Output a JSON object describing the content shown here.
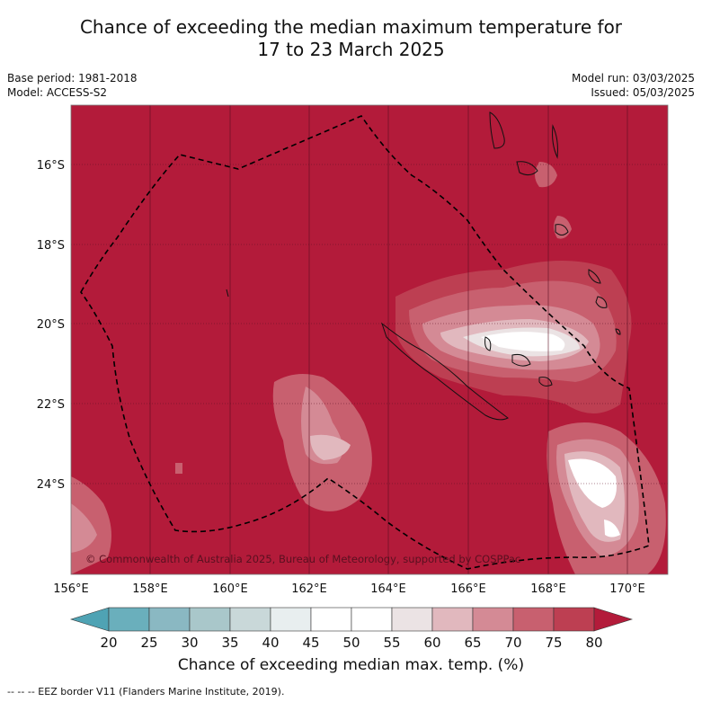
{
  "title": {
    "line1": "Chance of exceeding the median maximum temperature for",
    "line2": "17 to 23 March 2025"
  },
  "meta_left": {
    "base_period": "Base period: 1981-2018",
    "model": "Model: ACCESS-S2"
  },
  "meta_right": {
    "model_run": "Model run: 03/03/2025",
    "issued": "Issued: 05/03/2025"
  },
  "map": {
    "lat_labels": [
      "16°S",
      "18°S",
      "20°S",
      "22°S",
      "24°S"
    ],
    "lon_labels": [
      "156°E",
      "158°E",
      "160°E",
      "162°E",
      "164°E",
      "166°E",
      "168°E",
      "170°E"
    ],
    "copyright": "© Commonwealth of Australia 2025, Bureau of Meteorology, supported by COSPPac",
    "background_color": "#b31b3a"
  },
  "colorbar": {
    "ticks": [
      "20",
      "25",
      "30",
      "35",
      "40",
      "45",
      "50",
      "55",
      "60",
      "65",
      "70",
      "75",
      "80"
    ],
    "colors": [
      "#4fa3b4",
      "#6aafbc",
      "#8ab8c2",
      "#a9c7ca",
      "#c9d8d9",
      "#e8eeef",
      "#ffffff",
      "#ffffff",
      "#ebe3e4",
      "#e1b8be",
      "#d48a95",
      "#c8606f",
      "#bd3f52",
      "#b31b3a"
    ],
    "label": "Chance of exceeding median max. temp. (%)"
  },
  "footnote": "--  --  -- EEZ border V11 (Flanders Marine Institute, 2019)."
}
